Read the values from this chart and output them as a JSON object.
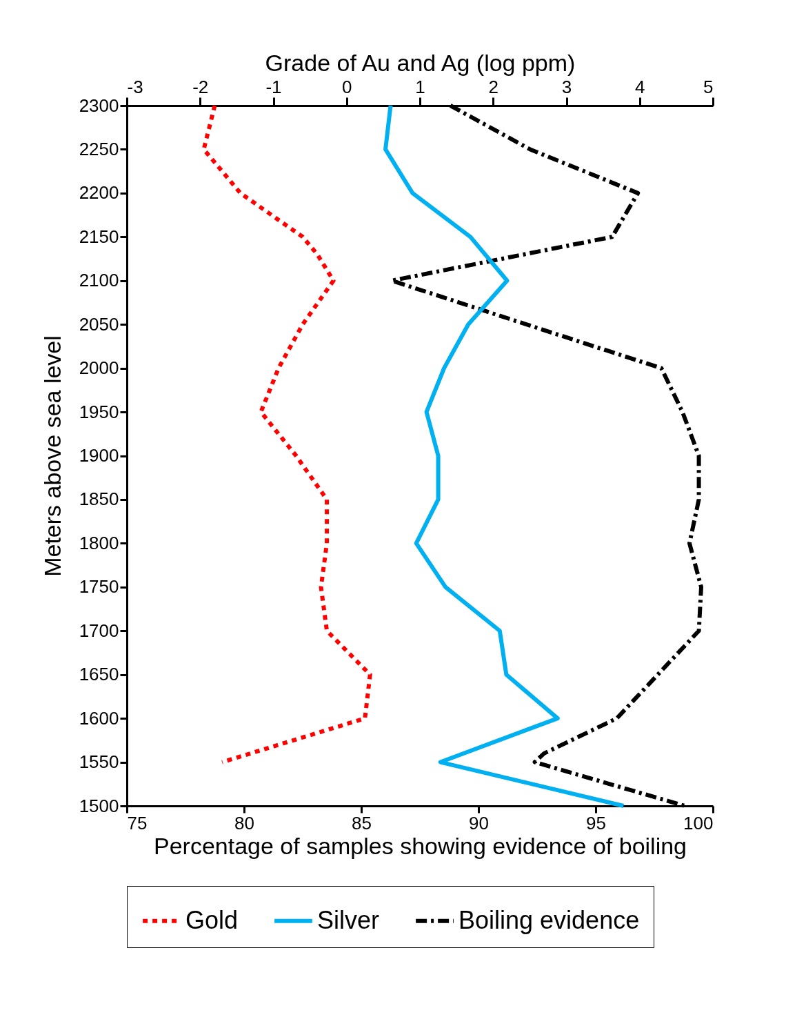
{
  "chart_data": {
    "type": "line",
    "x2label": "Grade of Au and Ag (log ppm)",
    "xlabel": "Percentage of samples showing evidence of boiling",
    "ylabel": "Meters above sea level",
    "xlim": [
      75,
      100
    ],
    "xticks": [
      75,
      80,
      85,
      90,
      95,
      100
    ],
    "x2lim": [
      -3,
      5
    ],
    "x2ticks": [
      -3,
      -2,
      -1,
      0,
      1,
      2,
      3,
      4,
      5
    ],
    "ylim": [
      1500,
      2300
    ],
    "yticks": [
      1500,
      1550,
      1600,
      1650,
      1700,
      1750,
      1800,
      1850,
      1900,
      1950,
      2000,
      2050,
      2100,
      2150,
      2200,
      2250,
      2300
    ],
    "grid": false,
    "legend": "bottom",
    "series": [
      {
        "name": "Gold",
        "color": "#ff0000",
        "line_style": "dotted",
        "axis": "x2",
        "x": [
          -1.8,
          -1.95,
          -1.45,
          -0.6,
          -0.4,
          -0.18,
          -0.6,
          -0.93,
          -1.17,
          -0.69,
          -0.27,
          -0.27,
          -0.35,
          -0.27,
          0.32,
          0.25,
          -1.7
        ],
        "values": [
          2300,
          2250,
          2200,
          2150,
          2130,
          2100,
          2050,
          2000,
          1950,
          1900,
          1850,
          1800,
          1750,
          1700,
          1650,
          1600,
          1550
        ]
      },
      {
        "name": "Silver",
        "color": "#00b0f0",
        "line_style": "solid",
        "axis": "x2",
        "x": [
          0.6,
          0.53,
          0.9,
          1.69,
          2.19,
          1.66,
          1.33,
          1.09,
          1.25,
          1.25,
          0.95,
          1.35,
          2.09,
          2.18,
          2.88,
          1.28,
          3.78
        ],
        "values": [
          2300,
          2250,
          2200,
          2150,
          2100,
          2050,
          2000,
          1950,
          1900,
          1850,
          1800,
          1750,
          1700,
          1650,
          1600,
          1550,
          1500
        ]
      },
      {
        "name": "Boiling evidence",
        "color": "#000000",
        "line_style": "dashed",
        "x": [
          88.8,
          92.2,
          96.8,
          95.7,
          86.3,
          97.8,
          98.7,
          99.4,
          99.4,
          99.0,
          99.5,
          99.4,
          95.9,
          92.8,
          92.4,
          98.8
        ],
        "values": [
          2300,
          2250,
          2200,
          2150,
          2100,
          2000,
          1950,
          1900,
          1850,
          1800,
          1750,
          1700,
          1600,
          1560,
          1550,
          1500
        ]
      }
    ]
  }
}
